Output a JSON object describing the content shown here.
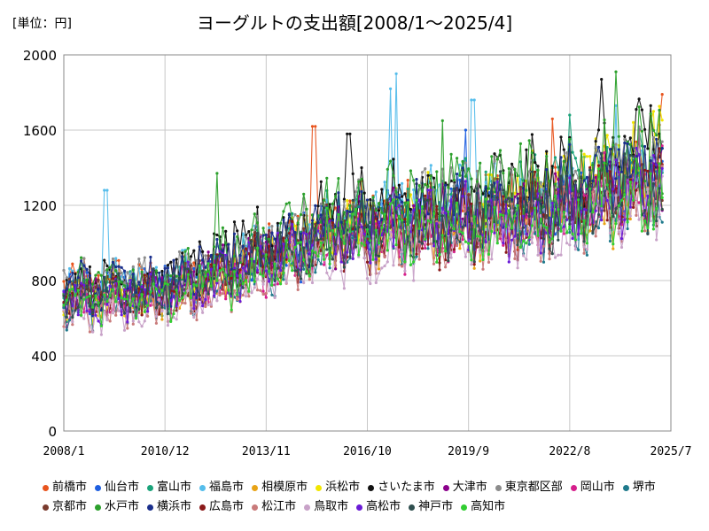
{
  "header": {
    "unit": "[単位：円]",
    "title": "ヨーグルトの支出額[2008/1～2025/4]"
  },
  "chart_data": {
    "type": "line",
    "title": "ヨーグルトの支出額[2008/1～2025/4]",
    "unit_label": "[単位：円]",
    "xlabel": "",
    "ylabel": "",
    "ylim": [
      0,
      2000
    ],
    "yticks": [
      0,
      400,
      800,
      1200,
      1600,
      2000
    ],
    "xlim": [
      "2008/1",
      "2025/7"
    ],
    "xticks": [
      "2008/1",
      "2010/12",
      "2013/11",
      "2016/10",
      "2019/9",
      "2022/8",
      "2025/7"
    ],
    "grid": true,
    "legend_position": "bottom",
    "x_start": "2008/1",
    "x_end": "2025/4",
    "series": [
      {
        "name": "前橋市",
        "color": "#E8541E",
        "anchors": [
          [
            2008,
            760
          ],
          [
            2011,
            760
          ],
          [
            2014,
            960
          ],
          [
            2016,
            1080
          ],
          [
            2019,
            1130
          ],
          [
            2022,
            1190
          ],
          [
            2025.3,
            1400
          ]
        ],
        "peaks": [
          [
            2025.25,
            1790
          ],
          [
            2015.2,
            1620
          ],
          [
            2022.1,
            1660
          ]
        ]
      },
      {
        "name": "仙台市",
        "color": "#1F5FE0",
        "anchors": [
          [
            2008,
            720
          ],
          [
            2011,
            740
          ],
          [
            2014,
            900
          ],
          [
            2016,
            1050
          ],
          [
            2019,
            1100
          ],
          [
            2022,
            1160
          ],
          [
            2025.3,
            1350
          ]
        ],
        "peaks": [
          [
            2019.6,
            1600
          ]
        ]
      },
      {
        "name": "富山市",
        "color": "#1BA37A",
        "anchors": [
          [
            2008,
            700
          ],
          [
            2011,
            720
          ],
          [
            2014,
            950
          ],
          [
            2016,
            1060
          ],
          [
            2019,
            1150
          ],
          [
            2022,
            1250
          ],
          [
            2025.3,
            1350
          ]
        ],
        "peaks": [
          [
            2022.6,
            1680
          ]
        ]
      },
      {
        "name": "福島市",
        "color": "#55BDEB",
        "anchors": [
          [
            2008,
            740
          ],
          [
            2011,
            780
          ],
          [
            2014,
            930
          ],
          [
            2016,
            1100
          ],
          [
            2019,
            1220
          ],
          [
            2022,
            1200
          ],
          [
            2025.3,
            1300
          ]
        ],
        "peaks": [
          [
            2017.6,
            1900
          ],
          [
            2017.4,
            1820
          ],
          [
            2019.8,
            1760
          ],
          [
            2009.2,
            1280
          ],
          [
            2023.9,
            1730
          ]
        ]
      },
      {
        "name": "相模原市",
        "color": "#E8A317",
        "anchors": [
          [
            2008,
            700
          ],
          [
            2011,
            700
          ],
          [
            2014,
            880
          ],
          [
            2016,
            1000
          ],
          [
            2019,
            1040
          ],
          [
            2022,
            1100
          ],
          [
            2025.3,
            1250
          ]
        ],
        "peaks": []
      },
      {
        "name": "浜松市",
        "color": "#F2E600",
        "anchors": [
          [
            2008,
            700
          ],
          [
            2011,
            700
          ],
          [
            2014,
            900
          ],
          [
            2016,
            1050
          ],
          [
            2019,
            1150
          ],
          [
            2022,
            1250
          ],
          [
            2025.3,
            1500
          ]
        ],
        "peaks": [
          [
            2025.0,
            1700
          ]
        ]
      },
      {
        "name": "さいたま市",
        "color": "#111111",
        "anchors": [
          [
            2008,
            760
          ],
          [
            2011,
            800
          ],
          [
            2014,
            1000
          ],
          [
            2016,
            1150
          ],
          [
            2019,
            1200
          ],
          [
            2022,
            1300
          ],
          [
            2025.3,
            1500
          ]
        ],
        "peaks": [
          [
            2023.5,
            1870
          ],
          [
            2016.2,
            1580
          ],
          [
            2024.9,
            1730
          ]
        ]
      },
      {
        "name": "大津市",
        "color": "#8B008B",
        "anchors": [
          [
            2008,
            700
          ],
          [
            2011,
            740
          ],
          [
            2014,
            920
          ],
          [
            2016,
            1030
          ],
          [
            2019,
            1100
          ],
          [
            2022,
            1150
          ],
          [
            2025.3,
            1350
          ]
        ],
        "peaks": []
      },
      {
        "name": "東京都区部",
        "color": "#8C8C8C",
        "anchors": [
          [
            2008,
            760
          ],
          [
            2011,
            780
          ],
          [
            2014,
            960
          ],
          [
            2016,
            1120
          ],
          [
            2019,
            1180
          ],
          [
            2022,
            1230
          ],
          [
            2025.3,
            1380
          ]
        ],
        "peaks": []
      },
      {
        "name": "岡山市",
        "color": "#D61F8C",
        "anchors": [
          [
            2008,
            660
          ],
          [
            2011,
            700
          ],
          [
            2014,
            860
          ],
          [
            2016,
            980
          ],
          [
            2019,
            1050
          ],
          [
            2022,
            1100
          ],
          [
            2025.3,
            1300
          ]
        ],
        "peaks": []
      },
      {
        "name": "堺市",
        "color": "#1F7A8C",
        "anchors": [
          [
            2008,
            650
          ],
          [
            2011,
            680
          ],
          [
            2014,
            850
          ],
          [
            2016,
            980
          ],
          [
            2019,
            1050
          ],
          [
            2022,
            1080
          ],
          [
            2025.3,
            1250
          ]
        ],
        "peaks": []
      },
      {
        "name": "京都市",
        "color": "#7A3B2E",
        "anchors": [
          [
            2008,
            700
          ],
          [
            2011,
            720
          ],
          [
            2014,
            900
          ],
          [
            2016,
            1000
          ],
          [
            2019,
            1080
          ],
          [
            2022,
            1100
          ],
          [
            2025.3,
            1300
          ]
        ],
        "peaks": []
      },
      {
        "name": "水戸市",
        "color": "#2CA02C",
        "anchors": [
          [
            2008,
            760
          ],
          [
            2011,
            760
          ],
          [
            2014,
            980
          ],
          [
            2016,
            1150
          ],
          [
            2019,
            1250
          ],
          [
            2022,
            1300
          ],
          [
            2025.3,
            1450
          ]
        ],
        "peaks": [
          [
            2023.9,
            1910
          ],
          [
            2012.4,
            1370
          ],
          [
            2018.9,
            1650
          ]
        ]
      },
      {
        "name": "横浜市",
        "color": "#1A2F8C",
        "anchors": [
          [
            2008,
            740
          ],
          [
            2011,
            760
          ],
          [
            2014,
            950
          ],
          [
            2016,
            1080
          ],
          [
            2019,
            1150
          ],
          [
            2022,
            1200
          ],
          [
            2025.3,
            1400
          ]
        ],
        "peaks": []
      },
      {
        "name": "広島市",
        "color": "#8B1A1A",
        "anchors": [
          [
            2008,
            680
          ],
          [
            2011,
            700
          ],
          [
            2014,
            880
          ],
          [
            2016,
            1000
          ],
          [
            2019,
            1060
          ],
          [
            2022,
            1120
          ],
          [
            2025.3,
            1300
          ]
        ],
        "peaks": []
      },
      {
        "name": "松江市",
        "color": "#C97B7B",
        "anchors": [
          [
            2008,
            600
          ],
          [
            2011,
            650
          ],
          [
            2014,
            820
          ],
          [
            2016,
            960
          ],
          [
            2019,
            1000
          ],
          [
            2022,
            1050
          ],
          [
            2025.3,
            1250
          ]
        ],
        "peaks": []
      },
      {
        "name": "鳥取市",
        "color": "#C8A2C8",
        "anchors": [
          [
            2008,
            600
          ],
          [
            2011,
            640
          ],
          [
            2014,
            800
          ],
          [
            2016,
            900
          ],
          [
            2019,
            980
          ],
          [
            2022,
            1000
          ],
          [
            2025.3,
            1200
          ]
        ],
        "peaks": []
      },
      {
        "name": "高松市",
        "color": "#6A1BD6",
        "anchors": [
          [
            2008,
            660
          ],
          [
            2011,
            700
          ],
          [
            2014,
            880
          ],
          [
            2016,
            1000
          ],
          [
            2019,
            1080
          ],
          [
            2022,
            1100
          ],
          [
            2025.3,
            1300
          ]
        ],
        "peaks": []
      },
      {
        "name": "神戸市",
        "color": "#2F4F4F",
        "anchors": [
          [
            2008,
            680
          ],
          [
            2011,
            720
          ],
          [
            2014,
            900
          ],
          [
            2016,
            1020
          ],
          [
            2019,
            1100
          ],
          [
            2022,
            1130
          ],
          [
            2025.3,
            1300
          ]
        ],
        "peaks": []
      },
      {
        "name": "高知市",
        "color": "#32CD32",
        "anchors": [
          [
            2008,
            650
          ],
          [
            2011,
            690
          ],
          [
            2014,
            860
          ],
          [
            2016,
            990
          ],
          [
            2019,
            1050
          ],
          [
            2022,
            1080
          ],
          [
            2025.3,
            1250
          ]
        ],
        "peaks": []
      }
    ]
  }
}
